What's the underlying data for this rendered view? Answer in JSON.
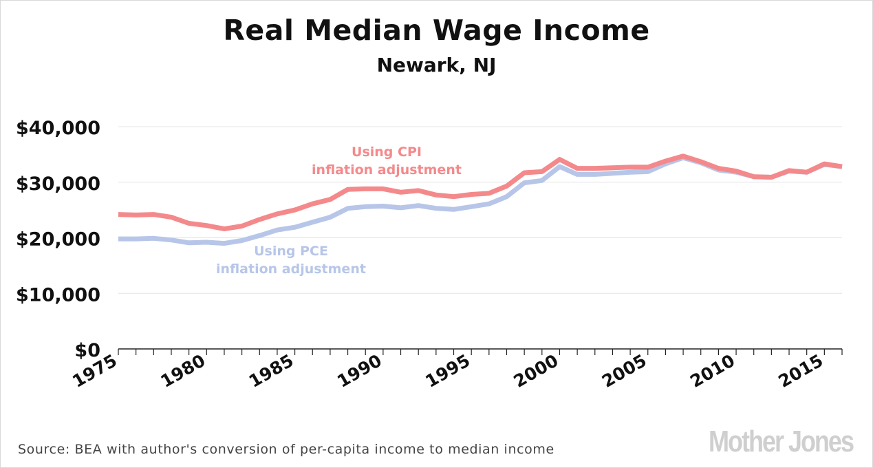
{
  "chart_data": {
    "type": "line",
    "title": "Real Median Wage Income",
    "subtitle": "Newark, NJ",
    "ylim": [
      0,
      40000
    ],
    "yticks": [
      {
        "value": 0,
        "label": "$0"
      },
      {
        "value": 10000,
        "label": "$10,000"
      },
      {
        "value": 20000,
        "label": "$20,000"
      },
      {
        "value": 30000,
        "label": "$30,000"
      },
      {
        "value": 40000,
        "label": "$40,000"
      }
    ],
    "xlim": [
      1975,
      2016
    ],
    "xticks": [
      {
        "value": 1975,
        "label": "1975"
      },
      {
        "value": 1980,
        "label": "1980"
      },
      {
        "value": 1985,
        "label": "1985"
      },
      {
        "value": 1990,
        "label": "1990"
      },
      {
        "value": 1995,
        "label": "1995"
      },
      {
        "value": 2000,
        "label": "2000"
      },
      {
        "value": 2005,
        "label": "2005"
      },
      {
        "value": 2010,
        "label": "2010"
      },
      {
        "value": 2015,
        "label": "2015"
      }
    ],
    "grid": true,
    "x": [
      1975,
      1976,
      1977,
      1978,
      1979,
      1980,
      1981,
      1982,
      1983,
      1984,
      1985,
      1986,
      1987,
      1988,
      1989,
      1990,
      1991,
      1992,
      1993,
      1994,
      1995,
      1996,
      1997,
      1998,
      1999,
      2000,
      2001,
      2002,
      2003,
      2004,
      2005,
      2006,
      2007,
      2008,
      2009,
      2010,
      2011,
      2012,
      2013,
      2014,
      2015,
      2016
    ],
    "series": [
      {
        "name": "",
        "label_lines": [
          "Using CPI",
          "inflation adjustment"
        ],
        "color": "#f4898b",
        "values": [
          24200,
          24100,
          24200,
          23700,
          22600,
          22200,
          21600,
          22100,
          23300,
          24300,
          25000,
          26100,
          26900,
          28700,
          28800,
          28800,
          28200,
          28500,
          27700,
          27400,
          27800,
          28000,
          29300,
          31700,
          31900,
          34100,
          32500,
          32500,
          32600,
          32700,
          32700,
          33800,
          34700,
          33700,
          32500,
          32000,
          31000,
          30900,
          32100,
          31800,
          33300,
          32800
        ]
      },
      {
        "name": "",
        "label_lines": [
          "Using PCE",
          "inflation adjustment"
        ],
        "color": "#b7c6e8",
        "values": [
          19800,
          19800,
          19900,
          19600,
          19100,
          19200,
          19000,
          19500,
          20400,
          21400,
          21900,
          22800,
          23700,
          25300,
          25600,
          25700,
          25400,
          25800,
          25300,
          25100,
          25600,
          26100,
          27400,
          29900,
          30300,
          32800,
          31400,
          31400,
          31600,
          31800,
          31900,
          33300,
          34400,
          33500,
          32200,
          31800,
          31000,
          30900,
          32000,
          31800,
          33200,
          32800
        ]
      }
    ]
  },
  "source": "Source: BEA with author's conversion of per-capita income to median income",
  "logo": "Mother Jones"
}
